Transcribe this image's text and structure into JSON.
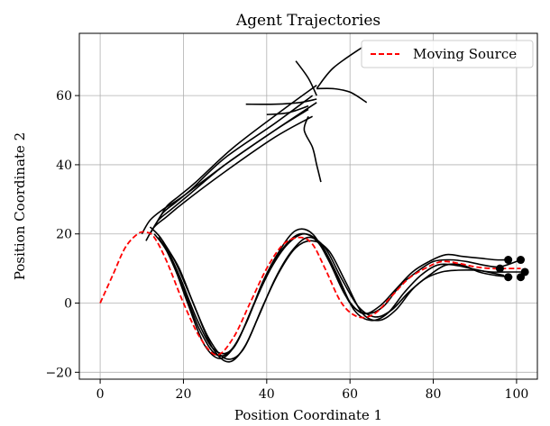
{
  "chart_data": {
    "type": "line",
    "title": "Agent Trajectories",
    "xlabel": "Position Coordinate 1",
    "ylabel": "Position Coordinate 2",
    "xlim": [
      -5,
      105
    ],
    "ylim": [
      -22,
      78
    ],
    "xticks": [
      0,
      20,
      40,
      60,
      80,
      100
    ],
    "yticks": [
      -20,
      0,
      20,
      40,
      60
    ],
    "grid": true,
    "legend_position": "top-right",
    "source_color": "#ff0000",
    "agent_color": "#000000",
    "series": [
      {
        "name": "Moving Source",
        "style": "dashed",
        "x": [
          0,
          3,
          6,
          9,
          11,
          13,
          16,
          20,
          24,
          28,
          32,
          36,
          40,
          44,
          48,
          51,
          54,
          58,
          62,
          66,
          70,
          74,
          78,
          82,
          86,
          90,
          94,
          98,
          101
        ],
        "y": [
          0,
          8,
          16,
          20,
          20.5,
          19,
          12,
          0,
          -10,
          -15,
          -10,
          0,
          10,
          17,
          19,
          17,
          10,
          0,
          -4,
          -3,
          2,
          7,
          10,
          12,
          11.5,
          10.5,
          10,
          10,
          10
        ]
      }
    ],
    "agents": [
      {
        "x": [
          50,
          42,
          30,
          20,
          15,
          12,
          10
        ],
        "y": [
          56,
          50,
          40,
          31,
          27,
          24,
          20
        ]
      },
      {
        "x": [
          51,
          42,
          30,
          20,
          16,
          13,
          11
        ],
        "y": [
          54,
          48,
          38,
          29,
          25,
          22,
          18
        ]
      },
      {
        "x": [
          52,
          42,
          30,
          21,
          17,
          14,
          12
        ],
        "y": [
          58,
          50,
          40,
          31,
          27,
          24,
          20
        ]
      },
      {
        "x": [
          51,
          42,
          30,
          22,
          18,
          15,
          13
        ],
        "y": [
          60,
          52,
          42,
          33,
          29,
          26,
          22
        ]
      },
      {
        "x": [
          52,
          44,
          32,
          23,
          19,
          16,
          14
        ],
        "y": [
          63,
          56,
          45,
          35,
          31,
          28,
          24
        ]
      },
      {
        "x": [
          14,
          17,
          21,
          25,
          29,
          33,
          37,
          41,
          45,
          49,
          53,
          57,
          61,
          65,
          69,
          73,
          77,
          81,
          85,
          89,
          93,
          97
        ],
        "y": [
          19,
          13,
          0,
          -12,
          -16,
          -11,
          0,
          10,
          17,
          20,
          17,
          8,
          -2,
          -5,
          -3,
          3,
          8,
          11,
          11,
          10,
          9,
          8
        ]
      },
      {
        "x": [
          16,
          19,
          23,
          27,
          31,
          35,
          39,
          43,
          47,
          51,
          55,
          59,
          63,
          67,
          71,
          75,
          79,
          83,
          87,
          91,
          95,
          99
        ],
        "y": [
          16,
          10,
          -2,
          -13,
          -17,
          -12,
          -1,
          9,
          16,
          18,
          15,
          6,
          -3,
          -5,
          -2,
          4,
          8,
          11,
          11,
          9,
          8,
          7.5
        ]
      },
      {
        "x": [
          12,
          15,
          19,
          23,
          27,
          31,
          35,
          39,
          43,
          47,
          51,
          55,
          59,
          63,
          67,
          71,
          75,
          79,
          83,
          87,
          91,
          95,
          98
        ],
        "y": [
          22,
          18,
          8,
          -4,
          -13,
          -14,
          -6,
          6,
          15,
          21,
          20,
          12,
          2,
          -3,
          -1,
          4,
          9,
          12,
          14,
          13.5,
          13,
          12.5,
          12.5
        ]
      },
      {
        "x": [
          13,
          16,
          20,
          24,
          28,
          32,
          36,
          40,
          44,
          48,
          52,
          56,
          60,
          64,
          68,
          72,
          76,
          80,
          84,
          88,
          92,
          96,
          101
        ],
        "y": [
          20,
          15,
          4,
          -8,
          -15,
          -13,
          -3,
          8,
          16,
          20,
          18,
          10,
          0,
          -3,
          -1,
          5,
          9,
          12,
          12.5,
          12,
          11,
          10.5,
          12.5
        ]
      },
      {
        "x": [
          15,
          18,
          22,
          26,
          30,
          34,
          38,
          42,
          46,
          50,
          54,
          58,
          62,
          66,
          70,
          74,
          78,
          82,
          86,
          90,
          94,
          98,
          102
        ],
        "y": [
          18,
          12,
          1,
          -10,
          -16,
          -14,
          -4,
          7,
          15,
          19,
          16,
          7,
          -1,
          -4,
          -2,
          3,
          7,
          9,
          9.5,
          9.5,
          9,
          9,
          9
        ]
      }
    ],
    "stray_paths": [
      {
        "x": [
          52,
          56,
          63
        ],
        "y": [
          62,
          68,
          74
        ]
      },
      {
        "x": [
          47,
          50,
          52
        ],
        "y": [
          70,
          65,
          60
        ]
      },
      {
        "x": [
          52,
          56,
          60,
          64
        ],
        "y": [
          62,
          62,
          61,
          58
        ]
      },
      {
        "x": [
          35,
          42,
          48,
          52
        ],
        "y": [
          57.5,
          57.5,
          58,
          59
        ]
      },
      {
        "x": [
          40,
          45,
          50
        ],
        "y": [
          54.5,
          55,
          57
        ]
      },
      {
        "x": [
          50,
          49,
          51,
          52,
          53
        ],
        "y": [
          54,
          50,
          45,
          40,
          35
        ]
      }
    ],
    "endpoints": {
      "x": [
        98,
        101,
        96,
        102,
        98,
        101
      ],
      "y": [
        12.5,
        12.5,
        10,
        9,
        7.5,
        7.5
      ]
    }
  }
}
